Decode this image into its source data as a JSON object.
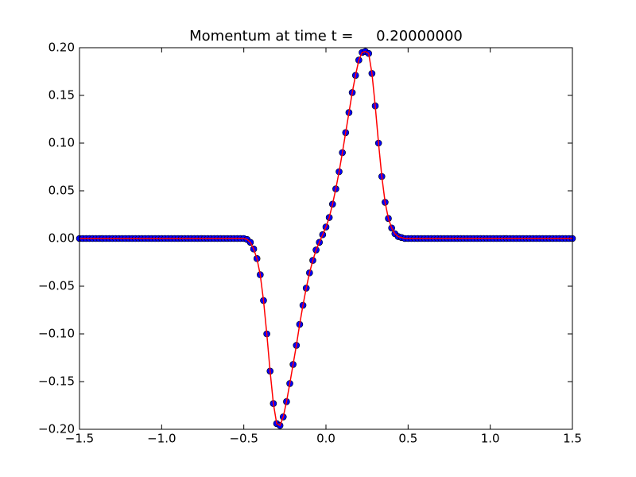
{
  "chart_data": {
    "type": "line-marker",
    "title": "Momentum at time t =     0.20000000",
    "x": [
      -1.5,
      -1.48,
      -1.46,
      -1.44,
      -1.42,
      -1.4,
      -1.38,
      -1.36,
      -1.34,
      -1.32,
      -1.3,
      -1.28,
      -1.26,
      -1.24,
      -1.22,
      -1.2,
      -1.18,
      -1.16,
      -1.14,
      -1.12,
      -1.1,
      -1.08,
      -1.06,
      -1.04,
      -1.02,
      -1.0,
      -0.98,
      -0.96,
      -0.94,
      -0.92,
      -0.9,
      -0.88,
      -0.86,
      -0.84,
      -0.82,
      -0.8,
      -0.78,
      -0.76,
      -0.74,
      -0.72,
      -0.7,
      -0.68,
      -0.66,
      -0.64,
      -0.62,
      -0.6,
      -0.58,
      -0.56,
      -0.54,
      -0.52,
      -0.5,
      -0.48,
      -0.46,
      -0.44,
      -0.42,
      -0.4,
      -0.38,
      -0.36,
      -0.34,
      -0.32,
      -0.3,
      -0.28,
      -0.26,
      -0.24,
      -0.22,
      -0.2,
      -0.18,
      -0.16,
      -0.14,
      -0.12,
      -0.1,
      -0.08,
      -0.06,
      -0.04,
      -0.02,
      0,
      0.02,
      0.04,
      0.06,
      0.08,
      0.1,
      0.12,
      0.14,
      0.16,
      0.18,
      0.2,
      0.22,
      0.24,
      0.26,
      0.28,
      0.3,
      0.32,
      0.34,
      0.36,
      0.38,
      0.4,
      0.42,
      0.44,
      0.46,
      0.48,
      0.5,
      0.52,
      0.54,
      0.56,
      0.58,
      0.6,
      0.62,
      0.64,
      0.66,
      0.68,
      0.7,
      0.72,
      0.74,
      0.76,
      0.78,
      0.8,
      0.82,
      0.84,
      0.86,
      0.88,
      0.9,
      0.92,
      0.94,
      0.96,
      0.98,
      1.0,
      1.02,
      1.04,
      1.06,
      1.08,
      1.1,
      1.12,
      1.14,
      1.16,
      1.18,
      1.2,
      1.22,
      1.24,
      1.26,
      1.28,
      1.3,
      1.32,
      1.34,
      1.36,
      1.38,
      1.4,
      1.42,
      1.44,
      1.46,
      1.48,
      1.5
    ],
    "series": [
      {
        "style": "line",
        "color": "#ff0000",
        "values": [
          0,
          0,
          0,
          0,
          0,
          0,
          0,
          0,
          0,
          0,
          0,
          0,
          0,
          0,
          0,
          0,
          0,
          0,
          0,
          0,
          0,
          0,
          0,
          0,
          0,
          0,
          0,
          0,
          0,
          0,
          0,
          0,
          0,
          0,
          0,
          0,
          0,
          0,
          0,
          0,
          0,
          0,
          0,
          0,
          0,
          0,
          0,
          0,
          0,
          0,
          0,
          -0.001,
          -0.004,
          -0.011,
          -0.021,
          -0.038,
          -0.065,
          -0.1,
          -0.139,
          -0.173,
          -0.194,
          -0.196,
          -0.187,
          -0.171,
          -0.152,
          -0.132,
          -0.112,
          -0.09,
          -0.07,
          -0.052,
          -0.036,
          -0.023,
          -0.012,
          -0.004,
          0.004,
          0.012,
          0.022,
          0.036,
          0.052,
          0.07,
          0.09,
          0.111,
          0.132,
          0.153,
          0.171,
          0.187,
          0.195,
          0.196,
          0.194,
          0.173,
          0.139,
          0.1,
          0.065,
          0.038,
          0.021,
          0.011,
          0.005,
          0.002,
          0.001,
          0,
          0,
          0,
          0,
          0,
          0,
          0,
          0,
          0,
          0,
          0,
          0,
          0,
          0,
          0,
          0,
          0,
          0,
          0,
          0,
          0,
          0,
          0,
          0,
          0,
          0,
          0,
          0,
          0,
          0,
          0,
          0,
          0,
          0,
          0,
          0,
          0,
          0,
          0,
          0,
          0,
          0,
          0,
          0,
          0,
          0,
          0,
          0,
          0,
          0,
          0,
          0
        ]
      },
      {
        "style": "marker",
        "color": "#0000ff",
        "values": [
          0,
          0,
          0,
          0,
          0,
          0,
          0,
          0,
          0,
          0,
          0,
          0,
          0,
          0,
          0,
          0,
          0,
          0,
          0,
          0,
          0,
          0,
          0,
          0,
          0,
          0,
          0,
          0,
          0,
          0,
          0,
          0,
          0,
          0,
          0,
          0,
          0,
          0,
          0,
          0,
          0,
          0,
          0,
          0,
          0,
          0,
          0,
          0,
          0,
          0,
          0,
          -0.001,
          -0.004,
          -0.011,
          -0.021,
          -0.038,
          -0.065,
          -0.1,
          -0.139,
          -0.173,
          -0.194,
          -0.196,
          -0.187,
          -0.171,
          -0.152,
          -0.132,
          -0.112,
          -0.09,
          -0.07,
          -0.052,
          -0.036,
          -0.023,
          -0.012,
          -0.004,
          0.004,
          0.012,
          0.022,
          0.036,
          0.052,
          0.07,
          0.09,
          0.111,
          0.132,
          0.153,
          0.171,
          0.187,
          0.195,
          0.196,
          0.194,
          0.173,
          0.139,
          0.1,
          0.065,
          0.038,
          0.021,
          0.011,
          0.005,
          0.002,
          0.001,
          0,
          0,
          0,
          0,
          0,
          0,
          0,
          0,
          0,
          0,
          0,
          0,
          0,
          0,
          0,
          0,
          0,
          0,
          0,
          0,
          0,
          0,
          0,
          0,
          0,
          0,
          0,
          0,
          0,
          0,
          0,
          0,
          0,
          0,
          0,
          0,
          0,
          0,
          0,
          0,
          0,
          0,
          0,
          0,
          0,
          0,
          0,
          0,
          0,
          0,
          0,
          0
        ]
      }
    ],
    "xlim": [
      -1.5,
      1.5
    ],
    "xticks": [
      {
        "value": -1.5,
        "label": "−1.5"
      },
      {
        "value": -1.0,
        "label": "−1.0"
      },
      {
        "value": -0.5,
        "label": "−0.5"
      },
      {
        "value": 0,
        "label": "0.0"
      },
      {
        "value": 0.5,
        "label": "0.5"
      },
      {
        "value": 1.0,
        "label": "1.0"
      },
      {
        "value": 1.5,
        "label": "1.5"
      }
    ],
    "ylim": [
      -0.2,
      0.2
    ],
    "yticks": [
      {
        "value": -0.2,
        "label": "−0.20"
      },
      {
        "value": -0.15,
        "label": "−0.15"
      },
      {
        "value": -0.1,
        "label": "−0.10"
      },
      {
        "value": -0.05,
        "label": "−0.05"
      },
      {
        "value": 0,
        "label": "0.00"
      },
      {
        "value": 0.05,
        "label": "0.05"
      },
      {
        "value": 0.1,
        "label": "0.10"
      },
      {
        "value": 0.15,
        "label": "0.15"
      },
      {
        "value": 0.2,
        "label": "0.20"
      }
    ],
    "grid": false
  }
}
